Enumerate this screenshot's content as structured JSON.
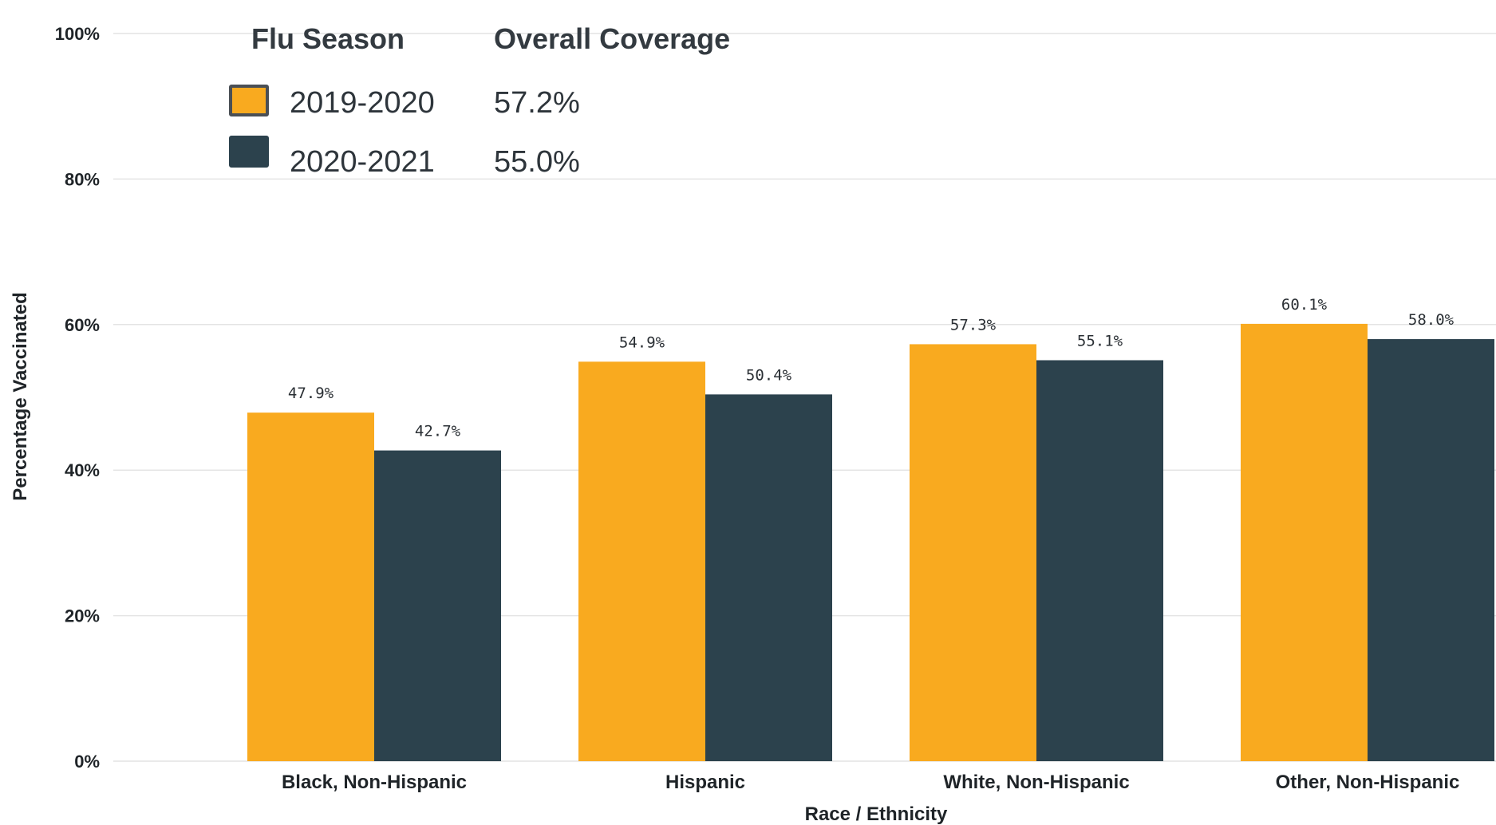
{
  "chart_data": {
    "type": "bar",
    "xlabel": "Race / Ethnicity",
    "ylabel": "Percentage Vaccinated",
    "ylim": [
      0,
      100
    ],
    "yticks": [
      "0%",
      "20%",
      "40%",
      "60%",
      "80%",
      "100%"
    ],
    "grid": true,
    "categories": [
      "Black, Non-Hispanic",
      "Hispanic",
      "White, Non-Hispanic",
      "Other, Non-Hispanic"
    ],
    "series": [
      {
        "name": "2019-2020",
        "color": "#f9aa1f",
        "values": [
          47.9,
          54.9,
          57.3,
          60.1
        ],
        "labels": [
          "47.9%",
          "54.9%",
          "57.3%",
          "60.1%"
        ]
      },
      {
        "name": "2020-2021",
        "color": "#2c424d",
        "values": [
          42.7,
          50.4,
          55.1,
          58.0
        ],
        "labels": [
          "42.7%",
          "50.4%",
          "55.1%",
          "58.0%"
        ]
      }
    ]
  },
  "legend": {
    "season_header": "Flu Season",
    "coverage_header": "Overall Coverage",
    "placement": "top-left",
    "items": [
      {
        "season": "2019-2020",
        "coverage": "57.2%",
        "color": "#f9aa1f",
        "border": "#4a4f55"
      },
      {
        "season": "2020-2021",
        "coverage": "55.0%",
        "color": "#2c424d",
        "border": "#2c424d"
      }
    ]
  }
}
